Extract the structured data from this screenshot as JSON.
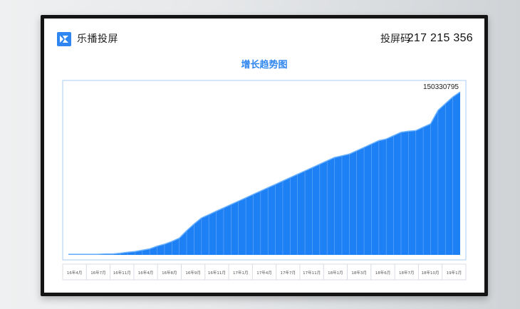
{
  "app": {
    "name": "乐播投屏",
    "code_label": "投屏码",
    "code_value": "217 215 356"
  },
  "chart_data": {
    "type": "area",
    "title": "增长趋势图",
    "end_label": "150330795",
    "x_tick_labels": [
      "16年4月",
      "16年7月",
      "16年11月",
      "16年4月",
      "16年8月",
      "16年9月",
      "16年11月",
      "17年1月",
      "17年4月",
      "17年7月",
      "17年11月",
      "18年1月",
      "18年3月",
      "18年6月",
      "18年7月",
      "18年10月",
      "19年1月"
    ],
    "values": [
      0.2,
      0.2,
      0.2,
      0.2,
      0.2,
      0.3,
      0.3,
      0.5,
      0.8,
      1.0,
      1.4,
      1.8,
      2.6,
      3.2,
      4.0,
      5.0,
      7.2,
      9.2,
      11.0,
      12.0,
      13.0,
      14.0,
      15.0,
      16.0,
      17.0,
      18.0,
      19.0,
      20.0,
      21.0,
      22.0,
      23.0,
      24.0,
      25.0,
      26.0,
      27.0,
      28.0,
      29.0,
      29.5,
      30.0,
      31.0,
      32.0,
      33.0,
      34.0,
      34.5,
      35.5,
      36.5,
      36.8,
      37.0,
      38.0,
      39.0,
      43.0,
      45.0,
      47.0,
      48.5
    ],
    "ylim": [
      0,
      50
    ],
    "grid": false,
    "legend": "none",
    "fill_color": "#1e80f5",
    "line_color": "#6eb4ff"
  }
}
